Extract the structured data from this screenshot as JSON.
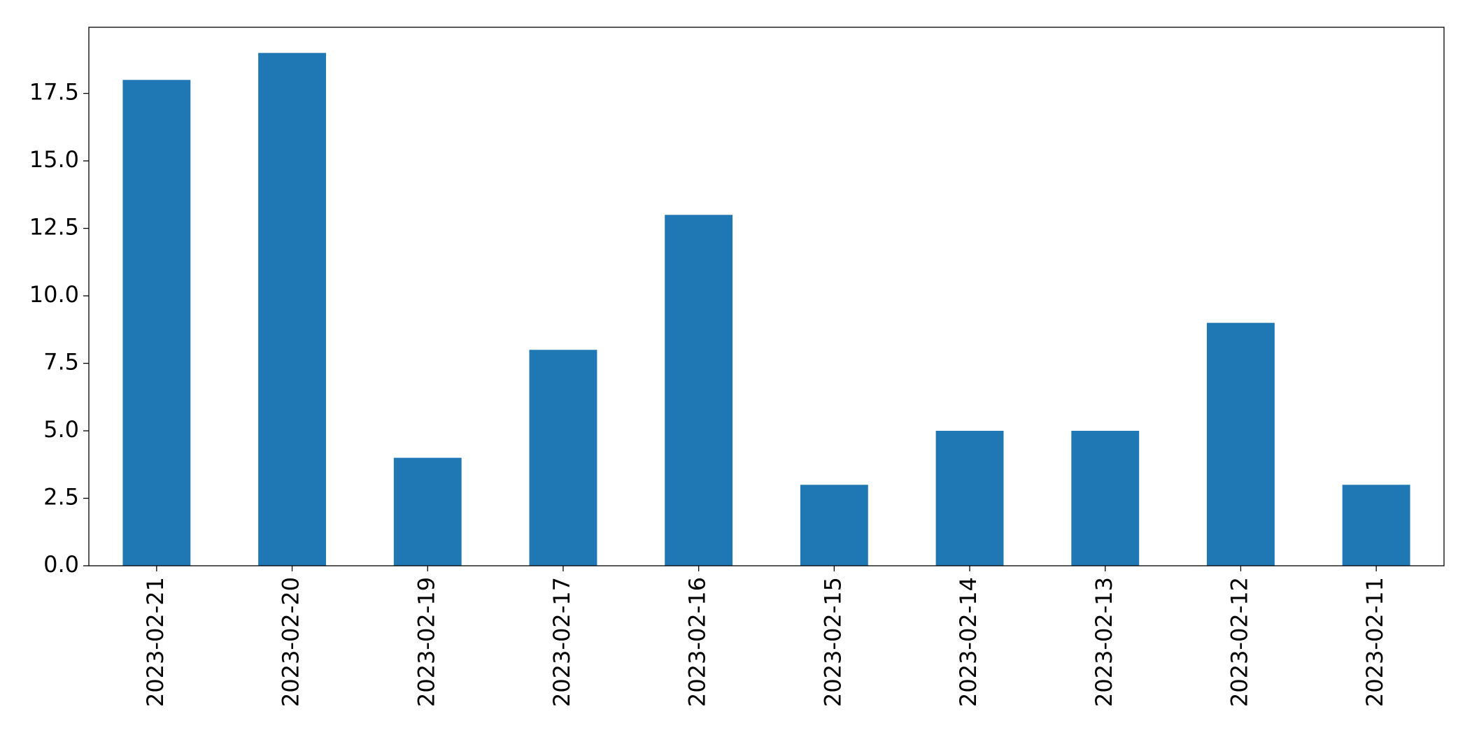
{
  "chart_data": {
    "type": "bar",
    "categories": [
      "2023-02-21",
      "2023-02-20",
      "2023-02-19",
      "2023-02-17",
      "2023-02-16",
      "2023-02-15",
      "2023-02-14",
      "2023-02-13",
      "2023-02-12",
      "2023-02-11"
    ],
    "values": [
      18,
      19,
      4,
      8,
      13,
      3,
      5,
      5,
      9,
      3
    ],
    "color": "#1f77b4",
    "ylim": [
      0,
      19.95
    ],
    "yticks": [
      {
        "value": 0,
        "label": "0.0"
      },
      2.5,
      {
        "value": 5,
        "label": "5.0"
      },
      7.5,
      {
        "value": 10,
        "label": "10.0"
      },
      12.5,
      {
        "value": 15,
        "label": "15.0"
      },
      17.5
    ],
    "grid": false
  }
}
